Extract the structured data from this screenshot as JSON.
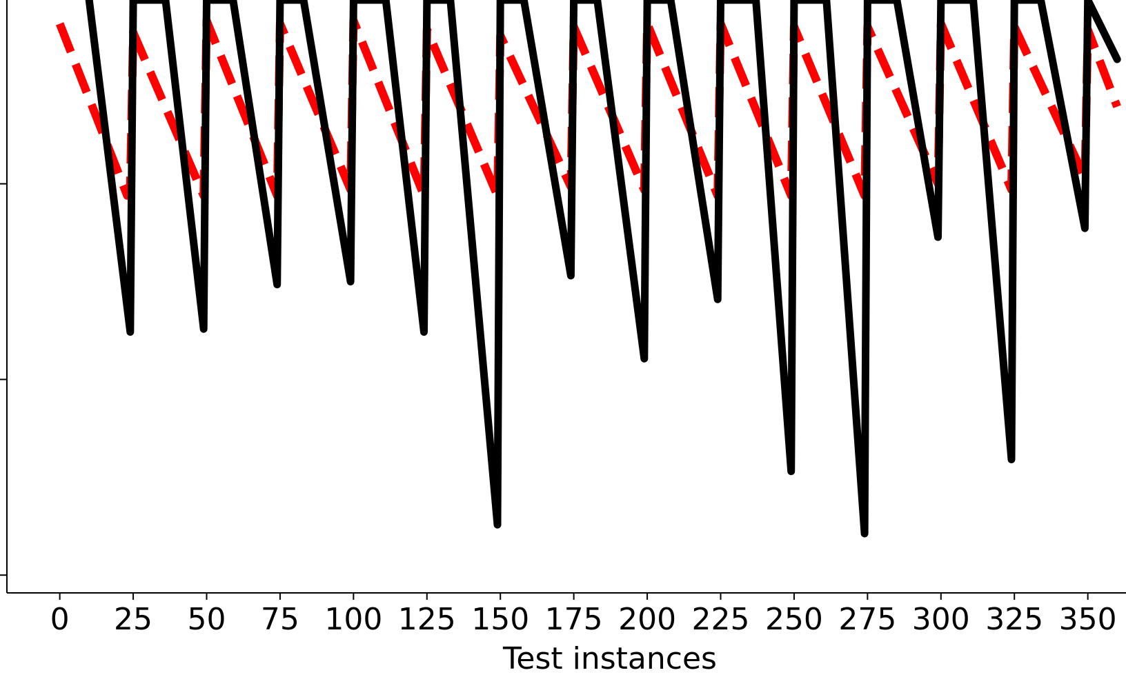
{
  "chart_data": {
    "type": "line",
    "title": "",
    "xlabel": "Test instances",
    "ylabel": "",
    "xlim": [
      -18,
      363
    ],
    "ylim": [
      0.0,
      1.0
    ],
    "x_ticks": [
      0,
      25,
      50,
      75,
      100,
      125,
      150,
      175,
      200,
      225,
      250,
      275,
      300,
      325,
      350
    ],
    "x_tick_labels": [
      "0",
      "25",
      "50",
      "75",
      "100",
      "125",
      "150",
      "175",
      "200",
      "225",
      "250",
      "275",
      "300",
      "325",
      "350"
    ],
    "y_ticks": [
      0.03,
      0.36,
      0.69,
      1.02
    ],
    "y_tick_labels": [
      "",
      "",
      "",
      ""
    ],
    "grid": false,
    "legend": "none",
    "series": [
      {
        "style": "solid",
        "color": "#000000",
        "x": [
          10,
          24,
          25,
          36,
          49,
          50,
          59,
          74,
          75,
          83,
          99,
          100,
          111,
          124,
          125,
          133,
          149,
          150,
          158,
          174,
          175,
          183,
          199,
          200,
          208,
          224,
          225,
          237,
          249,
          250,
          261,
          274,
          275,
          285,
          299,
          300,
          311,
          324,
          325,
          334,
          349,
          350,
          360
        ],
        "y": [
          1.0,
          0.44,
          1.0,
          1.0,
          0.445,
          1.0,
          1.0,
          0.52,
          1.0,
          1.0,
          0.525,
          1.0,
          1.0,
          0.44,
          1.0,
          1.0,
          0.115,
          1.0,
          1.0,
          0.535,
          1.0,
          1.0,
          0.395,
          1.0,
          1.0,
          0.495,
          1.0,
          1.0,
          0.205,
          1.0,
          1.0,
          0.1,
          1.0,
          1.0,
          0.6,
          1.0,
          1.0,
          0.225,
          1.0,
          1.0,
          0.615,
          1.0,
          0.9
        ]
      },
      {
        "style": "dashed",
        "color": "#ff0000",
        "x": [
          0,
          23,
          24,
          25,
          49,
          50,
          74,
          75,
          99,
          100,
          124,
          125,
          149,
          150,
          174,
          175,
          199,
          200,
          224,
          225,
          249,
          250,
          274,
          275,
          299,
          300,
          324,
          325,
          349,
          350,
          360
        ],
        "y": [
          0.96,
          0.67,
          0.69,
          0.945,
          0.67,
          0.965,
          0.67,
          0.96,
          0.68,
          0.965,
          0.67,
          0.95,
          0.67,
          0.94,
          0.685,
          0.955,
          0.68,
          0.96,
          0.67,
          0.96,
          0.67,
          0.955,
          0.67,
          0.955,
          0.69,
          0.96,
          0.68,
          0.955,
          0.7,
          0.95,
          0.82
        ]
      }
    ]
  }
}
